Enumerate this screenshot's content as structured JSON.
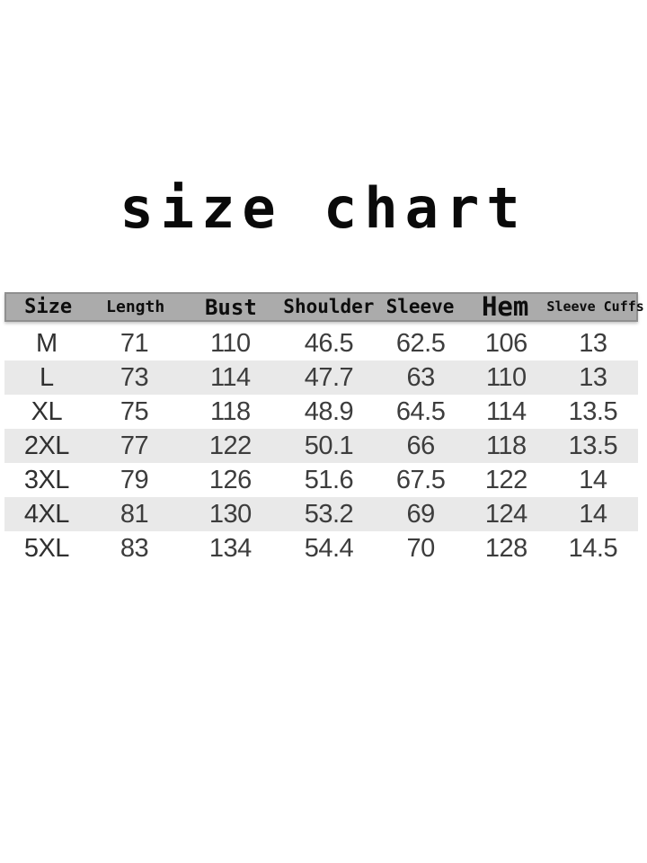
{
  "title": "size chart",
  "colors": {
    "page_background": "#ffffff",
    "title_text": "#0a0a0a",
    "header_background": "#ababab",
    "header_border": "#8f8f8f",
    "header_text": "#0d0d0d",
    "row_stripe": "#e9e9e9",
    "data_text": "#3d3d3d"
  },
  "chart_data": {
    "type": "table",
    "title": "size chart",
    "columns": [
      "Size",
      "Length",
      "Bust",
      "Shoulder",
      "Sleeve",
      "Hem",
      "Sleeve Cuffs"
    ],
    "rows": [
      [
        "M",
        "71",
        "110",
        "46.5",
        "62.5",
        "106",
        "13"
      ],
      [
        "L",
        "73",
        "114",
        "47.7",
        "63",
        "110",
        "13"
      ],
      [
        "XL",
        "75",
        "118",
        "48.9",
        "64.5",
        "114",
        "13.5"
      ],
      [
        "2XL",
        "77",
        "122",
        "50.1",
        "66",
        "118",
        "13.5"
      ],
      [
        "3XL",
        "79",
        "126",
        "51.6",
        "67.5",
        "122",
        "14"
      ],
      [
        "4XL",
        "81",
        "130",
        "53.2",
        "69",
        "124",
        "14"
      ],
      [
        "5XL",
        "83",
        "134",
        "54.4",
        "70",
        "128",
        "14.5"
      ]
    ],
    "layout": {
      "legend": "none",
      "grid": "off",
      "striped_rows": [
        1,
        3,
        5
      ],
      "units": "cm (implied, not shown)"
    }
  }
}
